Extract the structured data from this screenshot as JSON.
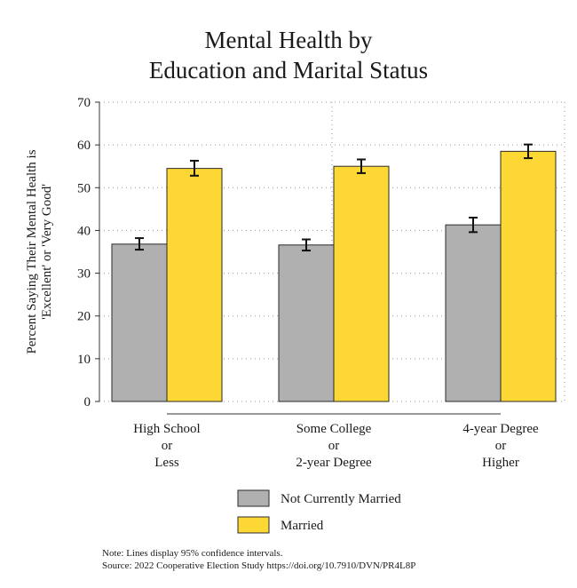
{
  "chart_data": {
    "type": "bar",
    "title_line1": "Mental Health by",
    "title_line2": "Education and Marital Status",
    "ylabel_line1": "Percent Saying Their Mental Health is",
    "ylabel_line2": "'Excellent' or 'Very Good'",
    "xlabel": "",
    "ylim": [
      0,
      70
    ],
    "yticks": [
      "0",
      "10",
      "20",
      "30",
      "40",
      "50",
      "60",
      "70"
    ],
    "grid": true,
    "legend_position": "bottom",
    "categories": [
      [
        "High School",
        "or",
        "Less"
      ],
      [
        "Some College",
        "or",
        "2-year Degree"
      ],
      [
        "4-year Degree",
        "or",
        "Higher"
      ]
    ],
    "series": [
      {
        "name": "Not Currently Married",
        "color": "#b0b0b0",
        "values": [
          36.8,
          36.6,
          41.3
        ],
        "ci": [
          [
            35.5,
            38.2
          ],
          [
            35.3,
            37.9
          ],
          [
            39.6,
            43.0
          ]
        ]
      },
      {
        "name": "Married",
        "color": "#fdd835",
        "values": [
          54.5,
          55.0,
          58.5
        ],
        "ci": [
          [
            52.8,
            56.3
          ],
          [
            53.4,
            56.6
          ],
          [
            56.9,
            60.1
          ]
        ]
      }
    ]
  },
  "notes": {
    "line1": "Note: Lines display 95% confidence intervals.",
    "line2": "Source: 2022 Cooperative Election Study https://doi.org/10.7910/DVN/PR4L8P"
  }
}
